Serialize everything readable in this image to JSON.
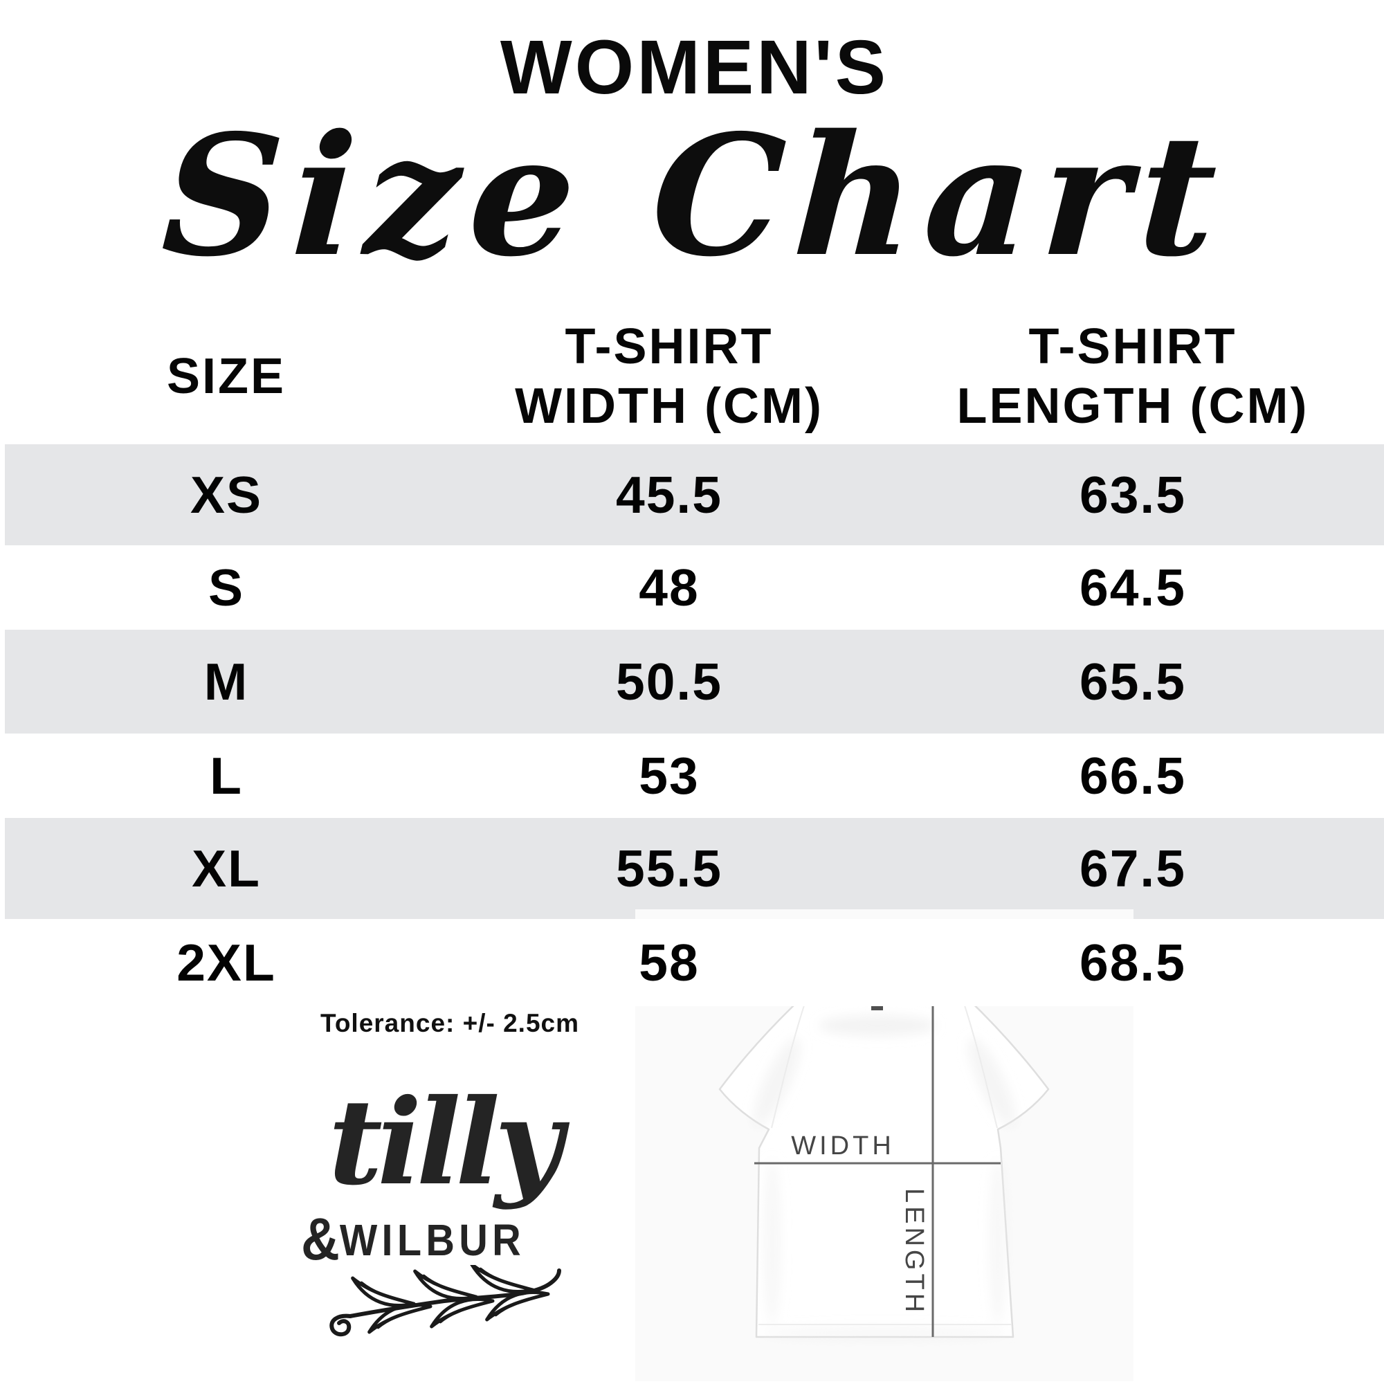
{
  "header": {
    "category": "WOMEN'S",
    "title": "Size Chart"
  },
  "table": {
    "columns": [
      {
        "line1": "SIZE",
        "line2": ""
      },
      {
        "line1": "T-SHIRT",
        "line2": "WIDTH (CM)"
      },
      {
        "line1": "T-SHIRT",
        "line2": "LENGTH (CM)"
      }
    ],
    "rows": [
      {
        "size": "XS",
        "width": "45.5",
        "length": "63.5"
      },
      {
        "size": "S",
        "width": "48",
        "length": "64.5"
      },
      {
        "size": "M",
        "width": "50.5",
        "length": "65.5"
      },
      {
        "size": "L",
        "width": "53",
        "length": "66.5"
      },
      {
        "size": "XL",
        "width": "55.5",
        "length": "67.5"
      },
      {
        "size": "2XL",
        "width": "58",
        "length": "68.5"
      }
    ]
  },
  "tolerance": "Tolerance: +/- 2.5cm",
  "brand": {
    "name": "tilly",
    "sub_amp": "&",
    "sub_name": "WILBUR"
  },
  "diagram": {
    "width_label": "WIDTH",
    "length_label": "LENGTH"
  },
  "colors": {
    "band_gray": "#e5e6e8",
    "measure_line": "#6a6a6a",
    "measure_label": "#454545"
  },
  "chart_data": {
    "type": "table",
    "title": "WOMEN'S Size Chart",
    "columns": [
      "SIZE",
      "T-SHIRT WIDTH (CM)",
      "T-SHIRT LENGTH (CM)"
    ],
    "rows": [
      [
        "XS",
        45.5,
        63.5
      ],
      [
        "S",
        48,
        64.5
      ],
      [
        "M",
        50.5,
        65.5
      ],
      [
        "L",
        53,
        66.5
      ],
      [
        "XL",
        55.5,
        67.5
      ],
      [
        "2XL",
        58,
        68.5
      ]
    ],
    "note": "Tolerance: +/- 2.5cm",
    "units": "cm"
  }
}
